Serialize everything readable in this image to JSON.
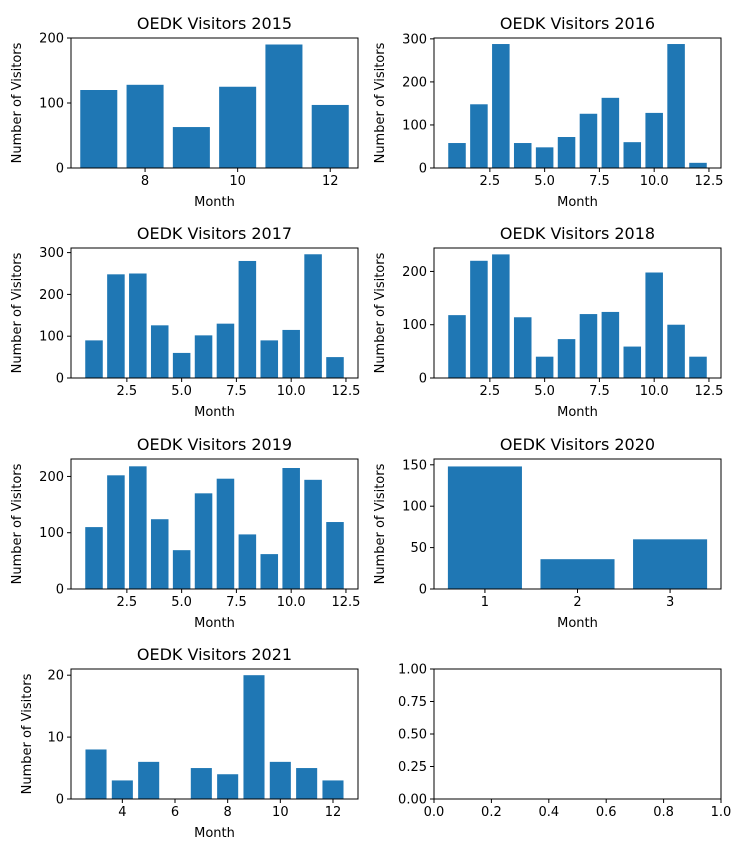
{
  "bar_color": "#1f77b4",
  "chart_data": [
    {
      "type": "bar",
      "title": "OEDK Visitors 2015",
      "xlabel": "Month",
      "ylabel": "Number of Visitors",
      "x": [
        7,
        8,
        9,
        10,
        11,
        12
      ],
      "values": [
        120,
        128,
        63,
        125,
        190,
        97
      ],
      "xlim": [
        6.4,
        12.6
      ],
      "ylim": [
        0,
        200
      ],
      "xticks": [
        8,
        10,
        12
      ],
      "xtick_labels": [
        "8",
        "10",
        "12"
      ],
      "yticks": [
        0,
        100,
        200
      ],
      "ytick_labels": [
        "0",
        "100",
        "200"
      ]
    },
    {
      "type": "bar",
      "title": "OEDK Visitors 2016",
      "xlabel": "Month",
      "ylabel": "Number of Visitors",
      "x": [
        1,
        2,
        3,
        4,
        5,
        6,
        7,
        8,
        9,
        10,
        11,
        12
      ],
      "values": [
        58,
        148,
        288,
        58,
        48,
        72,
        126,
        163,
        60,
        128,
        288,
        12
      ],
      "xlim": [
        -0.05,
        13.05
      ],
      "ylim": [
        0,
        302
      ],
      "xticks": [
        2.5,
        5.0,
        7.5,
        10.0,
        12.5
      ],
      "xtick_labels": [
        "2.5",
        "5.0",
        "7.5",
        "10.0",
        "12.5"
      ],
      "yticks": [
        0,
        100,
        200,
        300
      ],
      "ytick_labels": [
        "0",
        "100",
        "200",
        "300"
      ]
    },
    {
      "type": "bar",
      "title": "OEDK Visitors 2017",
      "xlabel": "Month",
      "ylabel": "Number of Visitors",
      "x": [
        1,
        2,
        3,
        4,
        5,
        6,
        7,
        8,
        9,
        10,
        11,
        12
      ],
      "values": [
        90,
        248,
        250,
        126,
        60,
        102,
        130,
        280,
        90,
        115,
        296,
        50
      ],
      "xlim": [
        -0.05,
        13.05
      ],
      "ylim": [
        0,
        311
      ],
      "xticks": [
        2.5,
        5.0,
        7.5,
        10.0,
        12.5
      ],
      "xtick_labels": [
        "2.5",
        "5.0",
        "7.5",
        "10.0",
        "12.5"
      ],
      "yticks": [
        0,
        100,
        200,
        300
      ],
      "ytick_labels": [
        "0",
        "100",
        "200",
        "300"
      ]
    },
    {
      "type": "bar",
      "title": "OEDK Visitors 2018",
      "xlabel": "Month",
      "ylabel": "Number of Visitors",
      "x": [
        1,
        2,
        3,
        4,
        5,
        6,
        7,
        8,
        9,
        10,
        11,
        12
      ],
      "values": [
        118,
        220,
        232,
        114,
        40,
        73,
        120,
        124,
        59,
        198,
        100,
        40
      ],
      "xlim": [
        -0.05,
        13.05
      ],
      "ylim": [
        0,
        244
      ],
      "xticks": [
        2.5,
        5.0,
        7.5,
        10.0,
        12.5
      ],
      "xtick_labels": [
        "2.5",
        "5.0",
        "7.5",
        "10.0",
        "12.5"
      ],
      "yticks": [
        0,
        100,
        200
      ],
      "ytick_labels": [
        "0",
        "100",
        "200"
      ]
    },
    {
      "type": "bar",
      "title": "OEDK Visitors 2019",
      "xlabel": "Month",
      "ylabel": "Number of Visitors",
      "x": [
        1,
        2,
        3,
        4,
        5,
        6,
        7,
        8,
        9,
        10,
        11,
        12
      ],
      "values": [
        110,
        202,
        218,
        124,
        69,
        170,
        196,
        97,
        62,
        215,
        194,
        119
      ],
      "xlim": [
        -0.05,
        13.05
      ],
      "ylim": [
        0,
        231
      ],
      "xticks": [
        2.5,
        5.0,
        7.5,
        10.0,
        12.5
      ],
      "xtick_labels": [
        "2.5",
        "5.0",
        "7.5",
        "10.0",
        "12.5"
      ],
      "yticks": [
        0,
        100,
        200
      ],
      "ytick_labels": [
        "0",
        "100",
        "200"
      ]
    },
    {
      "type": "bar",
      "title": "OEDK Visitors 2020",
      "xlabel": "Month",
      "ylabel": "Number of Visitors",
      "x": [
        1,
        2,
        3
      ],
      "values": [
        148,
        36,
        60
      ],
      "xlim": [
        0.45,
        3.55
      ],
      "ylim": [
        0,
        157
      ],
      "xticks": [
        1,
        2,
        3
      ],
      "xtick_labels": [
        "1",
        "2",
        "3"
      ],
      "yticks": [
        0,
        50,
        100,
        150
      ],
      "ytick_labels": [
        "0",
        "50",
        "100",
        "150"
      ]
    },
    {
      "type": "bar",
      "title": "OEDK Visitors 2021",
      "xlabel": "Month",
      "ylabel": "Number of Visitors",
      "x": [
        3,
        4,
        5,
        6,
        7,
        8,
        9,
        10,
        11,
        12
      ],
      "values": [
        8,
        3,
        6,
        0,
        5,
        4,
        20,
        6,
        5,
        3
      ],
      "xlim": [
        2.05,
        12.95
      ],
      "ylim": [
        0,
        21
      ],
      "xticks": [
        4,
        6,
        8,
        10,
        12
      ],
      "xtick_labels": [
        "4",
        "6",
        "8",
        "10",
        "12"
      ],
      "yticks": [
        0,
        10,
        20
      ],
      "ytick_labels": [
        "0",
        "10",
        "20"
      ]
    },
    {
      "type": "empty",
      "title": "",
      "xlabel": "",
      "ylabel": "",
      "x": [],
      "values": [],
      "xlim": [
        0,
        1
      ],
      "ylim": [
        0,
        1
      ],
      "xticks": [
        0,
        0.2,
        0.4,
        0.6,
        0.8,
        1.0
      ],
      "xtick_labels": [
        "0.0",
        "0.2",
        "0.4",
        "0.6",
        "0.8",
        "1.0"
      ],
      "yticks": [
        0,
        0.25,
        0.5,
        0.75,
        1.0
      ],
      "ytick_labels": [
        "0.00",
        "0.25",
        "0.50",
        "0.75",
        "1.00"
      ]
    }
  ]
}
